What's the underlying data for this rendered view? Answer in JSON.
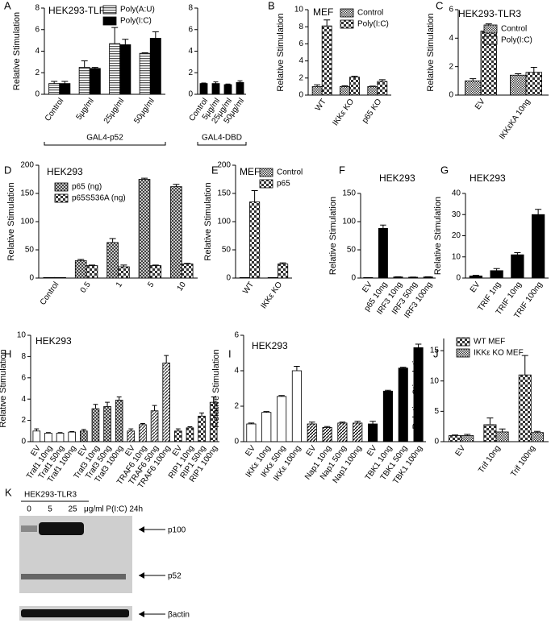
{
  "chart_data": [
    {
      "type": "bar",
      "label": "A",
      "title": "HEK293-TLR3",
      "y_label": "Relative Stimulation",
      "categories": [
        "Control",
        "5μg/ml",
        "25μg/ml",
        "50μg/ml"
      ],
      "series": [
        {
          "name": "Poly(A:U)",
          "color": "#555555",
          "pattern": "lines",
          "values": [
            1.0,
            2.5,
            4.7,
            3.8
          ],
          "errors": [
            0.2,
            0.6,
            1.5,
            0.05
          ]
        },
        {
          "name": "Poly(I:C)",
          "color": "#000000",
          "pattern": "solid",
          "values": [
            1.0,
            2.4,
            4.6,
            5.2
          ],
          "errors": [
            0.2,
            0.1,
            0.5,
            0.6
          ]
        }
      ],
      "ylim": [
        0,
        8
      ],
      "yticks": [
        0,
        2,
        4,
        6,
        8
      ],
      "group_label": "GAL4-p52"
    },
    {
      "type": "bar",
      "categories": [
        "Control",
        "5μg/ml",
        "25μg/ml",
        "50μg/ml"
      ],
      "values": [
        1.0,
        1.0,
        0.9,
        1.1
      ],
      "errors": [
        0.05,
        0.15,
        0.05,
        0.15
      ],
      "color": "#000000",
      "bar_patterns": [
        "solid",
        "solid",
        "solid",
        "solid"
      ],
      "ylim": [
        0,
        8
      ],
      "yticks": [
        0,
        2,
        4,
        6,
        8
      ],
      "group_label": "GAL4-DBD"
    },
    {
      "type": "bar",
      "label": "B",
      "title": "MEF",
      "y_label": "Relative Stimulation",
      "categories": [
        "WT",
        "IKKε KO",
        "p65 KO"
      ],
      "series": [
        {
          "name": "Control",
          "color": "#333333",
          "pattern": "checker",
          "values": [
            1.0,
            1.0,
            1.0
          ],
          "errors": [
            0.2,
            0.1,
            0.05
          ]
        },
        {
          "name": "Poly(I:C)",
          "color": "#333333",
          "pattern": "bigchecker",
          "values": [
            8.1,
            2.1,
            1.6
          ],
          "errors": [
            0.7,
            0.1,
            0.2
          ]
        }
      ],
      "ylim": [
        0,
        10
      ],
      "yticks": [
        0,
        2,
        4,
        6,
        8,
        10
      ]
    },
    {
      "type": "bar",
      "label": "C",
      "title": "HEK293-TLR3",
      "y_label": "Relative Stimulation",
      "categories": [
        "EV",
        "IKKεKA 10ng"
      ],
      "series": [
        {
          "name": "Control",
          "color": "#333333",
          "pattern": "checker",
          "values": [
            1.0,
            1.4
          ],
          "errors": [
            0.15,
            0.1
          ]
        },
        {
          "name": "Poly(I:C)",
          "color": "#333333",
          "pattern": "bigchecker",
          "values": [
            4.5,
            1.6
          ],
          "errors": [
            0.5,
            0.35
          ]
        }
      ],
      "ylim": [
        0,
        6
      ],
      "yticks": [
        0,
        2,
        4,
        6
      ]
    },
    {
      "type": "bar",
      "label": "D",
      "title": "HEK293",
      "y_label": "Relative Stimulation",
      "categories": [
        "Control",
        "0.5",
        "1",
        "5",
        "10"
      ],
      "series": [
        {
          "name": "p65 (ng)",
          "color": "#333333",
          "pattern": "xhatch",
          "values": [
            1,
            31,
            63,
            175,
            162
          ],
          "errors": [
            0,
            2,
            7,
            2,
            4
          ]
        },
        {
          "name": "p65S536A (ng)",
          "color": "#333333",
          "pattern": "bigchecker",
          "values": [
            1,
            22,
            20,
            22,
            25
          ],
          "errors": [
            0,
            1,
            3,
            1,
            1
          ]
        }
      ],
      "ylim": [
        0,
        200
      ],
      "yticks": [
        0,
        50,
        100,
        150,
        200
      ]
    },
    {
      "type": "bar",
      "label": "E",
      "title": "MEF",
      "y_label": "Relative Stimulation",
      "categories": [
        "WT",
        "IKKε KO"
      ],
      "series": [
        {
          "name": "Control",
          "color": "#333333",
          "pattern": "checker",
          "values": [
            1,
            1
          ],
          "errors": [
            0,
            0
          ]
        },
        {
          "name": "p65",
          "color": "#333333",
          "pattern": "bigchecker",
          "values": [
            135,
            25
          ],
          "errors": [
            20,
            2
          ]
        }
      ],
      "ylim": [
        0,
        200
      ],
      "yticks": [
        0,
        50,
        100,
        150,
        200
      ]
    },
    {
      "type": "bar",
      "label": "F",
      "title": "HEK293",
      "y_label": "Relative Stimulation",
      "categories": [
        "EV",
        "p65 10ng",
        "IRF3 10ng",
        "IRF3 50ng",
        "IRF3 100ng"
      ],
      "values": [
        1,
        88,
        2,
        1.5,
        2
      ],
      "errors": [
        0,
        6,
        0.3,
        0.3,
        0.3
      ],
      "color": "#000000",
      "bar_patterns": [
        "open",
        "solid",
        "solid",
        "solid",
        "solid"
      ],
      "ylim": [
        0,
        150
      ],
      "yticks": [
        0,
        50,
        100,
        150
      ]
    },
    {
      "type": "bar",
      "label": "G",
      "title": "HEK293",
      "y_label": "Relative Stimulation",
      "categories": [
        "EV",
        "TRIF 1ng",
        "TRIF 10ng",
        "TRIF 100ng"
      ],
      "values": [
        1,
        3.5,
        11,
        30
      ],
      "errors": [
        0.3,
        1,
        1,
        2.5
      ],
      "color": "#000000",
      "bar_patterns": [
        "solid",
        "solid",
        "solid",
        "solid"
      ],
      "ylim": [
        0,
        40
      ],
      "yticks": [
        0,
        10,
        20,
        30,
        40
      ]
    },
    {
      "type": "bar",
      "label": "H",
      "title": "HEK293",
      "y_label": "Relative Stimulation",
      "categories": [
        "EV",
        "Traf1 10ng",
        "Traf1 50ng",
        "Traf1 100ng",
        "EV",
        "Traf3 10ng",
        "Traf3 50ng",
        "Traf3 100ng",
        "EV",
        "TRAF6 10ng",
        "TRAF6 50ng",
        "TRAF6 100ng",
        "EV",
        "RIP1 10ng",
        "RIP1 50ng",
        "RIP1 100ng"
      ],
      "values": [
        1.0,
        0.8,
        0.8,
        0.9,
        1.0,
        3.1,
        3.3,
        3.9,
        1.0,
        1.6,
        2.9,
        7.4,
        1.0,
        1.3,
        2.4,
        3.7
      ],
      "errors": [
        0.2,
        0.05,
        0.05,
        0.05,
        0.15,
        0.4,
        0.4,
        0.3,
        0.2,
        0.1,
        0.5,
        0.7,
        0.2,
        0.1,
        0.3,
        0.5
      ],
      "color": "#333333",
      "bar_patterns": [
        "open",
        "open",
        "open",
        "open",
        "xhatch",
        "xhatch",
        "xhatch",
        "xhatch",
        "diag",
        "diag",
        "diag",
        "diag",
        "bigchecker",
        "bigchecker",
        "bigchecker",
        "bigchecker"
      ],
      "ylim": [
        0,
        10
      ],
      "yticks": [
        0,
        2,
        4,
        6,
        8,
        10
      ]
    },
    {
      "type": "bar",
      "label": "I",
      "title": "HEK293",
      "y_label": "Relative Stimulation",
      "categories": [
        "EV",
        "IKKε 10ng",
        "IKKε 50ng",
        "IKKε 100ng",
        "EV",
        "Nap1 10ng",
        "Nap1 50ng",
        "Nap1 100ng",
        "EV",
        "TBK1 10ng",
        "TBK1 50ng",
        "TBK1 100ng"
      ],
      "values": [
        1.0,
        1.65,
        2.55,
        4.0,
        1.0,
        0.8,
        1.05,
        1.05,
        1.0,
        2.85,
        4.15,
        5.3
      ],
      "errors": [
        0.05,
        0.05,
        0.05,
        0.25,
        0.1,
        0.05,
        0.05,
        0.1,
        0.15,
        0.05,
        0.05,
        0.2
      ],
      "color": "#000000",
      "bar_patterns": [
        "open",
        "open",
        "open",
        "open",
        "diag",
        "diag",
        "diag",
        "diag",
        "solid",
        "solid",
        "solid",
        "solid"
      ],
      "ylim": [
        0,
        6
      ],
      "yticks": [
        0,
        2,
        4,
        6
      ]
    },
    {
      "type": "bar",
      "label": "J",
      "y_label": "Relative Stimulation",
      "categories": [
        "EV",
        "Trif 10ng",
        "Trif 100ng"
      ],
      "series": [
        {
          "name": "WT MEF",
          "color": "#333333",
          "pattern": "bigchecker",
          "values": [
            1.0,
            2.8,
            11.0
          ],
          "errors": [
            0.1,
            1.1,
            3.2
          ]
        },
        {
          "name": "IKKε KO MEF",
          "color": "#333333",
          "pattern": "checker",
          "values": [
            1.0,
            1.6,
            1.5
          ],
          "errors": [
            0.2,
            0.5,
            0.2
          ]
        }
      ],
      "ylim": [
        0,
        17
      ],
      "yticks": [
        0,
        5,
        10,
        15
      ]
    }
  ],
  "blot": {
    "label": "K",
    "cell_line": "HEK293-TLR3",
    "doses": [
      "0",
      "5",
      "25"
    ],
    "unit": "μg/ml P(I:C) 24h",
    "bands": [
      "p100",
      "p52",
      "βactin"
    ]
  }
}
